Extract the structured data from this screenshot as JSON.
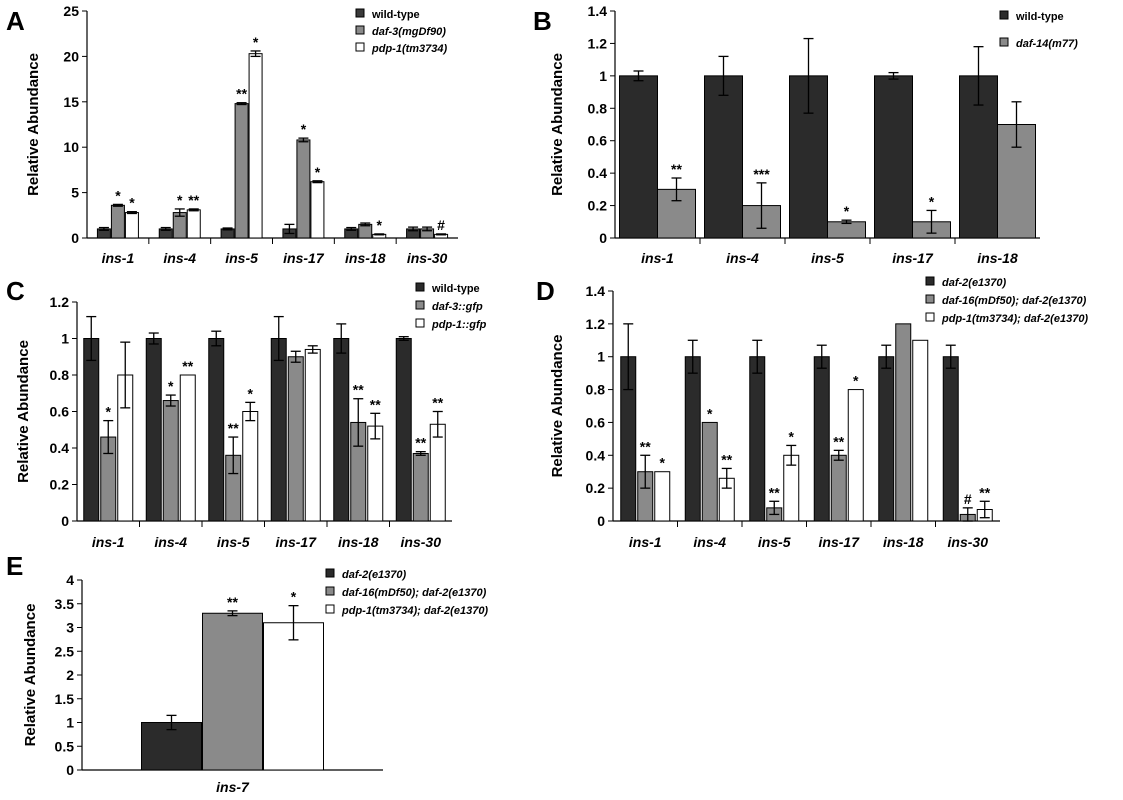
{
  "chart_data": [
    {
      "panel": "A",
      "type": "bar",
      "ylabel": "Relative Abundance",
      "ylim": [
        0,
        25
      ],
      "yticks": [
        "0",
        "5",
        "10",
        "15",
        "20",
        "25"
      ],
      "categories": [
        "ins-1",
        "ins-4",
        "ins-5",
        "ins-17",
        "ins-18",
        "ins-30"
      ],
      "legend_position": "top-right",
      "series": [
        {
          "name": "wild-type",
          "color": "#3a3a3a",
          "values": [
            1,
            1,
            1,
            1,
            1,
            1
          ],
          "errors": [
            0.15,
            0.15,
            0.1,
            0.5,
            0.15,
            0.2
          ],
          "labels": [
            "",
            "",
            "",
            "",
            "",
            ""
          ]
        },
        {
          "name": "daf-3(mgDf90)",
          "color": "#8a8a8a",
          "values": [
            3.6,
            2.8,
            14.8,
            10.8,
            1.5,
            1
          ],
          "errors": [
            0.1,
            0.4,
            0.1,
            0.2,
            0.15,
            0.2
          ],
          "labels": [
            "*",
            "*",
            "**",
            "*",
            "",
            ""
          ]
        },
        {
          "name": "pdp-1(tm3734)",
          "color": "#ffffff",
          "values": [
            2.8,
            3.1,
            20.3,
            6.2,
            0.4,
            0.4
          ],
          "errors": [
            0.1,
            0.1,
            0.3,
            0.1,
            0.05,
            0.05
          ],
          "labels": [
            "*",
            "**",
            "*",
            "*",
            "*",
            "#"
          ]
        }
      ]
    },
    {
      "panel": "B",
      "type": "bar",
      "ylabel": "Relative Abundance",
      "ylim": [
        0,
        1.4
      ],
      "yticks": [
        "0",
        "0.2",
        "0.4",
        "0.6",
        "0.8",
        "1",
        "1.2",
        "1.4"
      ],
      "categories": [
        "ins-1",
        "ins-4",
        "ins-5",
        "ins-17",
        "ins-18"
      ],
      "legend_position": "top-right",
      "series": [
        {
          "name": "wild-type",
          "color": "#2b2b2b",
          "values": [
            1,
            1,
            1,
            1,
            1
          ],
          "errors": [
            0.03,
            0.12,
            0.23,
            0.02,
            0.18
          ],
          "labels": [
            "",
            "",
            "",
            "",
            ""
          ]
        },
        {
          "name": "daf-14(m77)",
          "color": "#8a8a8a",
          "values": [
            0.3,
            0.2,
            0.1,
            0.1,
            0.7
          ],
          "errors": [
            0.07,
            0.14,
            0.01,
            0.07,
            0.14
          ],
          "labels": [
            "**",
            "***",
            "*",
            "*",
            ""
          ]
        }
      ]
    },
    {
      "panel": "C",
      "type": "bar",
      "ylabel": "Relative Abundance",
      "ylim": [
        0,
        1.2
      ],
      "yticks": [
        "0",
        "0.2",
        "0.4",
        "0.6",
        "0.8",
        "1",
        "1.2"
      ],
      "categories": [
        "ins-1",
        "ins-4",
        "ins-5",
        "ins-17",
        "ins-18",
        "ins-30"
      ],
      "legend_position": "top-right",
      "series": [
        {
          "name": "wild-type",
          "color": "#2b2b2b",
          "values": [
            1,
            1,
            1,
            1,
            1,
            1
          ],
          "errors": [
            0.12,
            0.03,
            0.04,
            0.12,
            0.08,
            0.01
          ],
          "labels": [
            "",
            "",
            "",
            "",
            "",
            ""
          ]
        },
        {
          "name": "daf-3::gfp",
          "color": "#8a8a8a",
          "values": [
            0.46,
            0.66,
            0.36,
            0.9,
            0.54,
            0.37
          ],
          "errors": [
            0.09,
            0.03,
            0.1,
            0.03,
            0.13,
            0.01
          ],
          "labels": [
            "*",
            "*",
            "**",
            "",
            "**",
            "**"
          ]
        },
        {
          "name": "pdp-1::gfp",
          "color": "#ffffff",
          "values": [
            0.8,
            0.8,
            0.6,
            0.94,
            0.52,
            0.53
          ],
          "errors": [
            0.18,
            0.0,
            0.05,
            0.02,
            0.07,
            0.07
          ],
          "labels": [
            "",
            "**",
            "*",
            "",
            "**",
            "**"
          ]
        }
      ]
    },
    {
      "panel": "D",
      "type": "bar",
      "ylabel": "Relative Abundance",
      "ylim": [
        0,
        1.4
      ],
      "yticks": [
        "0",
        "0.2",
        "0.4",
        "0.6",
        "0.8",
        "1",
        "1.2",
        "1.4"
      ],
      "categories": [
        "ins-1",
        "ins-4",
        "ins-5",
        "ins-17",
        "ins-18",
        "ins-30"
      ],
      "legend_position": "top-right",
      "series": [
        {
          "name": "daf-2(e1370)",
          "color": "#2b2b2b",
          "values": [
            1,
            1,
            1,
            1,
            1,
            1
          ],
          "errors": [
            0.2,
            0.1,
            0.1,
            0.07,
            0.07,
            0.07
          ],
          "labels": [
            "",
            "",
            "",
            "",
            "",
            ""
          ]
        },
        {
          "name": "daf-16(mDf50); daf-2(e1370)",
          "color": "#8a8a8a",
          "values": [
            0.3,
            0.6,
            0.08,
            0.4,
            1.2,
            0.04
          ],
          "errors": [
            0.1,
            0.0,
            0.04,
            0.03,
            0.0,
            0.04
          ],
          "labels": [
            "**",
            "*",
            "**",
            "**",
            "",
            "#"
          ]
        },
        {
          "name": "pdp-1(tm3734); daf-2(e1370)",
          "color": "#ffffff",
          "values": [
            0.3,
            0.26,
            0.4,
            0.8,
            1.1,
            0.07
          ],
          "errors": [
            0.0,
            0.06,
            0.06,
            0.0,
            0.0,
            0.05
          ],
          "labels": [
            "*",
            "**",
            "*",
            "*",
            "",
            "**"
          ]
        }
      ]
    },
    {
      "panel": "E",
      "type": "bar",
      "ylabel": "Relative Abundance",
      "ylim": [
        0,
        4
      ],
      "yticks": [
        "0",
        "0.5",
        "1",
        "1.5",
        "2",
        "2.5",
        "3",
        "3.5",
        "4"
      ],
      "categories": [
        "ins-7"
      ],
      "legend_position": "top-right",
      "series": [
        {
          "name": "daf-2(e1370)",
          "color": "#2b2b2b",
          "values": [
            1
          ],
          "errors": [
            0.15
          ],
          "labels": [
            ""
          ]
        },
        {
          "name": "daf-16(mDf50); daf-2(e1370)",
          "color": "#8a8a8a",
          "values": [
            3.3
          ],
          "errors": [
            0.05
          ],
          "labels": [
            "**"
          ]
        },
        {
          "name": "pdp-1(tm3734); daf-2(e1370)",
          "color": "#ffffff",
          "values": [
            3.1
          ],
          "errors": [
            0.36
          ],
          "labels": [
            "*"
          ]
        }
      ]
    }
  ]
}
